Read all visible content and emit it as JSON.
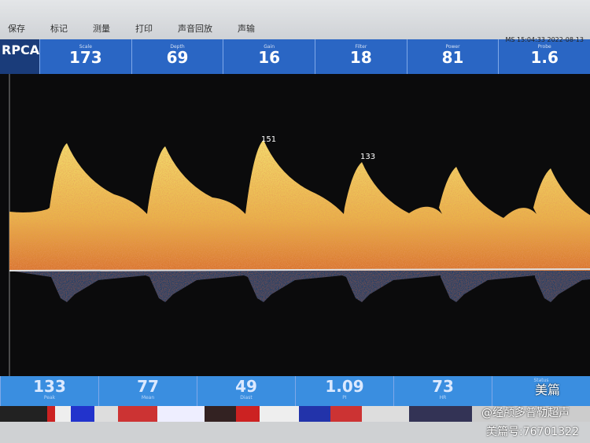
{
  "menu": [
    "保存",
    "标记",
    "测量",
    "打印",
    "声音回放",
    "声输"
  ],
  "vessel": "RPCA",
  "timestamp": "MS 15:04:33 2022-08-13",
  "top_params": [
    {
      "label": "Scale",
      "value": 173
    },
    {
      "label": "Depth",
      "value": 69
    },
    {
      "label": "Gain",
      "value": 16
    },
    {
      "label": "Filter",
      "value": 18
    },
    {
      "label": "Power",
      "value": 81
    },
    {
      "label": "Probe",
      "value": 1.6
    }
  ],
  "peak_annotations": [
    151,
    133
  ],
  "bottom_params": [
    {
      "value": 133,
      "label": "Peak"
    },
    {
      "value": 77,
      "label": "Mean"
    },
    {
      "value": 49,
      "label": "Diast"
    },
    {
      "value": 1.09,
      "label": "PI"
    },
    {
      "value": 73,
      "label": "HR"
    },
    {
      "value": "",
      "label": "Status"
    }
  ],
  "watermark": {
    "brand": "美篇",
    "author": "@经颅多普勒超声",
    "id": "美篇号:76701322"
  }
}
